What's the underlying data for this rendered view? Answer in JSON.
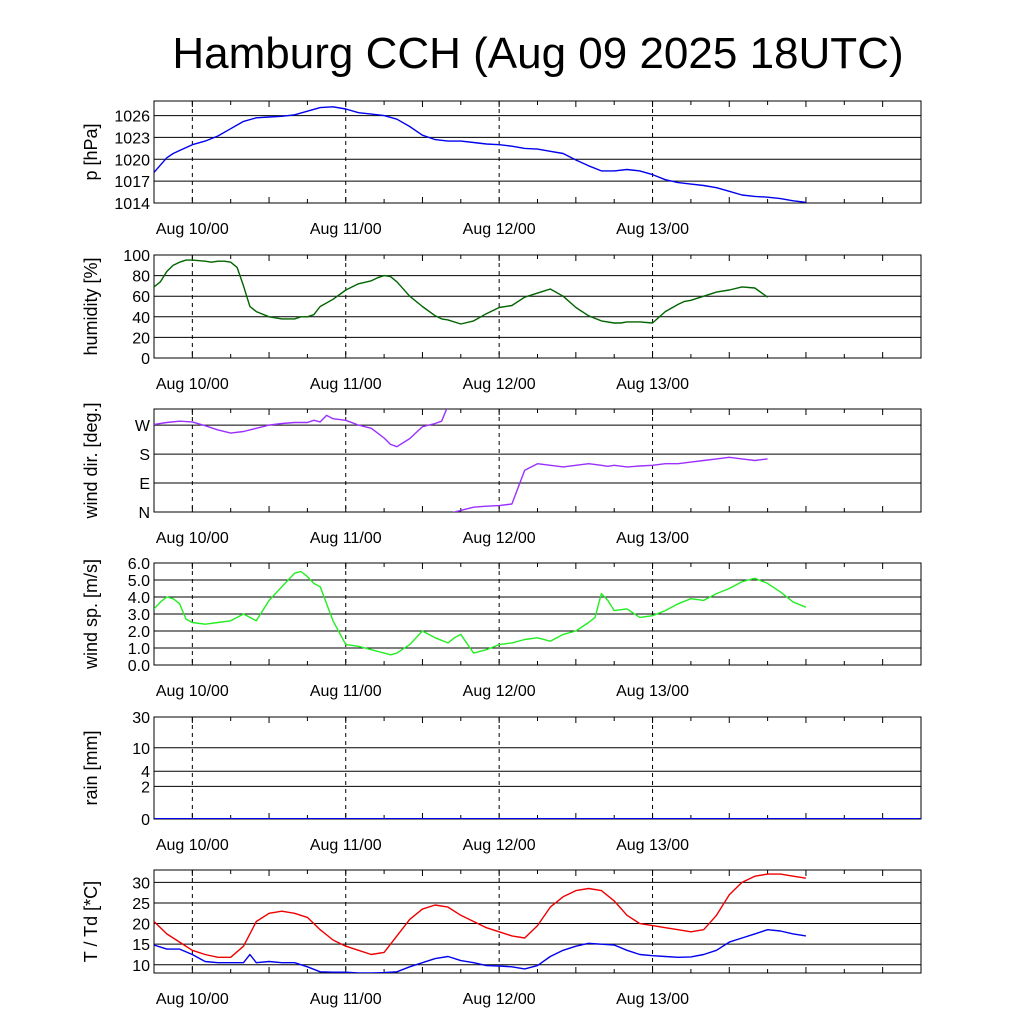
{
  "title": "Hamburg CCH (Aug 09 2025 18UTC)",
  "colors": {
    "pressure": "#0000ee",
    "humidity": "#006400",
    "wind_direction": "#9b30ff",
    "wind_speed": "#22ee22",
    "rain": "#0000ee",
    "temperature": "#ee0000",
    "dewpoint": "#0000ee"
  },
  "chart_data": [
    {
      "type": "line",
      "id": "pressure",
      "ylabel": "p [hPa]",
      "x_range_hours": [
        -6,
        114
      ],
      "x_tick_labels": [
        "Aug 10/00",
        "Aug 11/00",
        "Aug 12/00",
        "Aug 13/00"
      ],
      "x_tick_hours": [
        0,
        24,
        48,
        72
      ],
      "ylim": [
        1014,
        1028
      ],
      "yticks": [
        1014,
        1017,
        1020,
        1023,
        1026
      ],
      "ytick_labels": [
        "1014",
        "1017",
        "1020",
        "1023",
        "1026"
      ],
      "series": [
        {
          "x": [
            -6,
            -5,
            -4,
            -3,
            -2,
            -1,
            0,
            2,
            4,
            6,
            8,
            10,
            12,
            14,
            16,
            18,
            20,
            22,
            24,
            26,
            28,
            30,
            32,
            34,
            36,
            38,
            40,
            42,
            44,
            46,
            48,
            50,
            52,
            54,
            56,
            58,
            60,
            62,
            64,
            66,
            68,
            70,
            72,
            74,
            76,
            78,
            80,
            82,
            84,
            86,
            88,
            90,
            92,
            94,
            96
          ],
          "y": [
            1018.2,
            1019.2,
            1020.2,
            1020.8,
            1021.2,
            1021.6,
            1022.0,
            1022.5,
            1023.2,
            1024.2,
            1025.2,
            1025.7,
            1025.8,
            1025.9,
            1026.1,
            1026.6,
            1027.1,
            1027.2,
            1026.9,
            1026.4,
            1026.2,
            1026.0,
            1025.5,
            1024.5,
            1023.3,
            1022.7,
            1022.5,
            1022.5,
            1022.3,
            1022.1,
            1022.0,
            1021.8,
            1021.5,
            1021.4,
            1021.1,
            1020.8,
            1019.9,
            1019.1,
            1018.4,
            1018.4,
            1018.6,
            1018.4,
            1017.9,
            1017.2,
            1016.8,
            1016.6,
            1016.4,
            1016.1,
            1015.6,
            1015.1,
            1014.9,
            1014.8,
            1014.6,
            1014.3,
            1014.1
          ]
        }
      ]
    },
    {
      "type": "line",
      "id": "humidity",
      "ylabel": "humidity [%]",
      "x_range_hours": [
        -6,
        114
      ],
      "x_tick_labels": [
        "Aug 10/00",
        "Aug 11/00",
        "Aug 12/00",
        "Aug 13/00"
      ],
      "x_tick_hours": [
        0,
        24,
        48,
        72
      ],
      "ylim": [
        0,
        100
      ],
      "yticks": [
        0,
        20,
        40,
        60,
        80,
        100
      ],
      "ytick_labels": [
        "0",
        "20",
        "40",
        "60",
        "80",
        "100"
      ],
      "series": [
        {
          "x": [
            -6,
            -5,
            -4,
            -3,
            -2,
            -1,
            0,
            2,
            3,
            4,
            5,
            6,
            7,
            8,
            9,
            10,
            12,
            14,
            16,
            17,
            18,
            19,
            20,
            22,
            24,
            26,
            28,
            29,
            30,
            31,
            32,
            34,
            36,
            38,
            39,
            40,
            42,
            44,
            46,
            48,
            50,
            52,
            54,
            55,
            56,
            58,
            60,
            62,
            64,
            66,
            67,
            68,
            70,
            72,
            74,
            76,
            77,
            78,
            80,
            82,
            84,
            86,
            88,
            90
          ],
          "y": [
            69,
            74,
            84,
            90,
            93,
            95,
            95,
            94,
            93,
            94,
            94,
            93,
            88,
            70,
            50,
            45,
            40,
            38,
            38,
            40,
            40,
            42,
            50,
            57,
            66,
            72,
            75,
            78,
            80,
            79,
            74,
            60,
            50,
            41,
            38,
            37,
            33,
            36,
            43,
            49,
            51,
            59,
            63,
            65,
            67,
            60,
            49,
            41,
            36,
            34,
            34,
            35,
            35,
            34,
            45,
            52,
            55,
            56,
            60,
            64,
            66,
            69,
            68,
            59
          ]
        }
      ]
    },
    {
      "type": "line",
      "id": "wind_direction",
      "ylabel": "wind dir. [deg.]",
      "x_range_hours": [
        -6,
        114
      ],
      "x_tick_labels": [
        "Aug 10/00",
        "Aug 11/00",
        "Aug 12/00",
        "Aug 13/00"
      ],
      "x_tick_hours": [
        0,
        24,
        48,
        72
      ],
      "ylim": [
        0,
        320
      ],
      "yticks": [
        0,
        90,
        180,
        270
      ],
      "ytick_labels": [
        "N",
        "E",
        "S",
        "W"
      ],
      "series": [
        {
          "x": [
            -6,
            -4,
            -2,
            0,
            2,
            4,
            6,
            8,
            10,
            12,
            14,
            16,
            18,
            19,
            20,
            21,
            22,
            24,
            26,
            28,
            30,
            31,
            32,
            34,
            36,
            38,
            39,
            40
          ],
          "y": [
            272,
            278,
            282,
            280,
            268,
            255,
            245,
            250,
            260,
            270,
            275,
            278,
            278,
            285,
            280,
            300,
            290,
            285,
            270,
            260,
            230,
            210,
            203,
            228,
            265,
            275,
            282,
            330
          ]
        },
        {
          "x": [
            40,
            41,
            42,
            44,
            46,
            48,
            50,
            52,
            54,
            56,
            58,
            60,
            62,
            64,
            65,
            66,
            68,
            70,
            72,
            74,
            76,
            78,
            80,
            82,
            84,
            86,
            88,
            90
          ],
          "y": [
            -10,
            0,
            5,
            15,
            18,
            20,
            25,
            130,
            150,
            145,
            140,
            145,
            150,
            145,
            142,
            145,
            140,
            143,
            145,
            150,
            150,
            155,
            160,
            165,
            170,
            165,
            160,
            165
          ]
        }
      ]
    },
    {
      "type": "line",
      "id": "wind_speed",
      "ylabel": "wind sp. [m/s]",
      "x_range_hours": [
        -6,
        114
      ],
      "x_tick_labels": [
        "Aug 10/00",
        "Aug 11/00",
        "Aug 12/00",
        "Aug 13/00"
      ],
      "x_tick_hours": [
        0,
        24,
        48,
        72
      ],
      "ylim": [
        0,
        6
      ],
      "yticks": [
        0,
        1,
        2,
        3,
        4,
        5,
        6
      ],
      "ytick_labels": [
        "0.0",
        "1.0",
        "2.0",
        "3.0",
        "4.0",
        "5.0",
        "6.0"
      ],
      "series": [
        {
          "x": [
            -6,
            -5,
            -4,
            -3,
            -2,
            -1,
            0,
            2,
            4,
            6,
            8,
            9,
            10,
            12,
            14,
            15,
            16,
            17,
            18,
            19,
            20,
            22,
            24,
            26,
            28,
            30,
            31,
            32,
            34,
            35,
            36,
            38,
            40,
            41,
            42,
            44,
            46,
            48,
            50,
            52,
            54,
            56,
            58,
            60,
            62,
            63,
            64,
            65,
            66,
            68,
            70,
            72,
            74,
            76,
            78,
            80,
            82,
            84,
            86,
            88,
            90,
            92,
            94,
            96
          ],
          "y": [
            3.3,
            3.7,
            4.0,
            3.9,
            3.6,
            2.7,
            2.5,
            2.4,
            2.5,
            2.6,
            3.0,
            2.8,
            2.6,
            3.8,
            4.6,
            5.0,
            5.4,
            5.5,
            5.2,
            4.8,
            4.6,
            2.6,
            1.2,
            1.1,
            0.9,
            0.7,
            0.6,
            0.7,
            1.2,
            1.6,
            2.0,
            1.6,
            1.3,
            1.6,
            1.8,
            0.7,
            0.9,
            1.2,
            1.3,
            1.5,
            1.6,
            1.4,
            1.8,
            2.0,
            2.5,
            2.8,
            4.2,
            3.8,
            3.2,
            3.3,
            2.8,
            2.9,
            3.2,
            3.6,
            3.9,
            3.8,
            4.2,
            4.5,
            4.9,
            5.1,
            4.8,
            4.3,
            3.7,
            3.4
          ]
        }
      ]
    },
    {
      "type": "line",
      "id": "rain",
      "ylabel": "rain [mm]",
      "x_range_hours": [
        -6,
        114
      ],
      "x_tick_labels": [
        "Aug 10/00",
        "Aug 11/00",
        "Aug 12/00",
        "Aug 13/00"
      ],
      "x_tick_hours": [
        0,
        24,
        48,
        72
      ],
      "yticks": [
        0,
        2,
        4,
        10,
        30
      ],
      "ytick_labels": [
        "0",
        "2",
        "4",
        "10",
        "30"
      ],
      "series": [
        {
          "x": [
            -6,
            114
          ],
          "y": [
            0,
            0
          ]
        }
      ]
    },
    {
      "type": "line",
      "id": "temperature",
      "ylabel": "T / Td [*C]",
      "x_range_hours": [
        -6,
        114
      ],
      "x_tick_labels": [
        "Aug 10/00",
        "Aug 11/00",
        "Aug 12/00",
        "Aug 13/00"
      ],
      "x_tick_hours": [
        0,
        24,
        48,
        72
      ],
      "ylim": [
        8,
        33
      ],
      "yticks": [
        10,
        15,
        20,
        25,
        30
      ],
      "ytick_labels": [
        "10",
        "15",
        "20",
        "25",
        "30"
      ],
      "series": [
        {
          "id": "T",
          "x": [
            -6,
            -4,
            -2,
            0,
            2,
            4,
            6,
            8,
            9,
            10,
            12,
            14,
            16,
            18,
            20,
            22,
            24,
            26,
            28,
            30,
            32,
            34,
            36,
            38,
            40,
            42,
            44,
            46,
            48,
            50,
            52,
            54,
            56,
            58,
            60,
            62,
            64,
            66,
            68,
            70,
            72,
            74,
            76,
            78,
            80,
            82,
            84,
            86,
            88,
            90,
            92,
            94,
            96
          ],
          "y": [
            20.5,
            17.5,
            15.5,
            13.5,
            12.5,
            11.8,
            11.8,
            14.5,
            17.5,
            20.5,
            22.5,
            23.0,
            22.5,
            21.5,
            18.5,
            16.0,
            14.5,
            13.5,
            12.5,
            13.0,
            17.0,
            21.0,
            23.5,
            24.5,
            24.0,
            22.0,
            20.5,
            19.0,
            18.0,
            17.0,
            16.5,
            19.5,
            24.0,
            26.5,
            28.0,
            28.5,
            28.0,
            25.5,
            22.0,
            20.0,
            19.5,
            19.0,
            18.5,
            18.0,
            18.5,
            22.0,
            27.0,
            30.0,
            31.5,
            32.0,
            32.0,
            31.5,
            31.0
          ]
        },
        {
          "id": "Td",
          "x": [
            -6,
            -4,
            -2,
            0,
            2,
            4,
            6,
            8,
            9,
            10,
            12,
            14,
            16,
            18,
            20,
            22,
            24,
            26,
            28,
            30,
            32,
            34,
            36,
            38,
            40,
            42,
            44,
            46,
            48,
            50,
            52,
            54,
            56,
            58,
            60,
            62,
            64,
            66,
            68,
            70,
            72,
            74,
            76,
            78,
            80,
            82,
            84,
            86,
            88,
            90,
            92,
            94,
            96
          ],
          "y": [
            14.8,
            13.8,
            13.8,
            12.5,
            10.8,
            10.5,
            10.5,
            10.5,
            12.5,
            10.5,
            10.8,
            10.5,
            10.5,
            9.5,
            8.3,
            8.2,
            8.2,
            8.0,
            8.0,
            8.1,
            8.3,
            9.5,
            10.5,
            11.5,
            12.0,
            11.0,
            10.5,
            9.8,
            9.7,
            9.5,
            9.0,
            9.8,
            12.0,
            13.5,
            14.5,
            15.2,
            15.0,
            14.8,
            13.5,
            12.5,
            12.2,
            12.0,
            11.8,
            11.9,
            12.5,
            13.5,
            15.5,
            16.5,
            17.5,
            18.5,
            18.2,
            17.5,
            17.0
          ]
        }
      ]
    }
  ]
}
